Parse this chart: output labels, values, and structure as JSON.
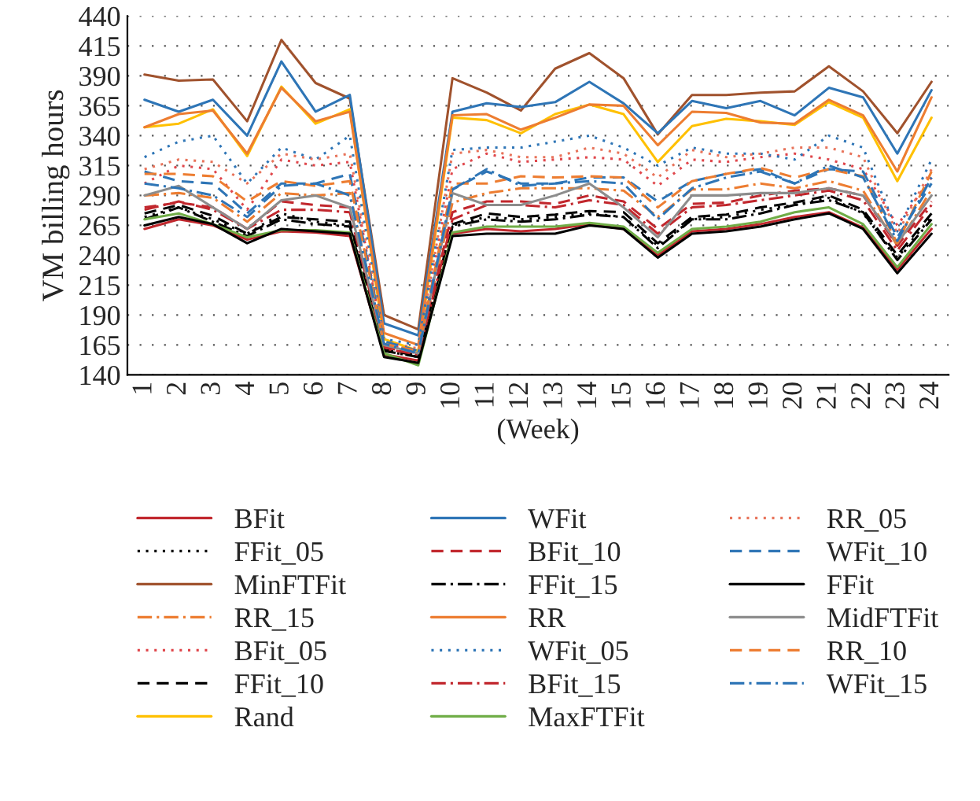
{
  "chart_data": {
    "type": "line",
    "ylabel": "VM billing hours",
    "xlabel": "(Week)",
    "categories": [
      "1",
      "2",
      "3",
      "4",
      "5",
      "6",
      "7",
      "8",
      "9",
      "10",
      "11",
      "12",
      "13",
      "14",
      "15",
      "16",
      "17",
      "18",
      "19",
      "20",
      "21",
      "22",
      "23",
      "24"
    ],
    "ylim": [
      140,
      440
    ],
    "yticks": [
      140,
      165,
      190,
      215,
      240,
      265,
      290,
      315,
      340,
      365,
      390,
      415,
      440
    ],
    "grid": "y",
    "legend": "bottom",
    "series": [
      {
        "name": "BFit",
        "color": "#c1272d",
        "line_style": "solid",
        "values": [
          262,
          270,
          265,
          253,
          260,
          259,
          256,
          157,
          152,
          258,
          262,
          260,
          262,
          266,
          262,
          240,
          260,
          262,
          266,
          272,
          276,
          263,
          228,
          262
        ]
      },
      {
        "name": "FFit_05",
        "color": "#000000",
        "line_style": "dotted",
        "values": [
          272,
          280,
          270,
          258,
          275,
          268,
          265,
          160,
          155,
          265,
          272,
          270,
          272,
          275,
          272,
          248,
          270,
          272,
          278,
          282,
          288,
          275,
          238,
          272
        ]
      },
      {
        "name": "MinFTFit",
        "color": "#a0522d",
        "line_style": "solid",
        "values": [
          391,
          386,
          387,
          352,
          420,
          384,
          371,
          190,
          178,
          388,
          376,
          361,
          396,
          409,
          388,
          341,
          374,
          374,
          376,
          377,
          398,
          377,
          342,
          385
        ]
      },
      {
        "name": "RR_15",
        "color": "#ed7d31",
        "line_style": "dashdot",
        "values": [
          290,
          292,
          288,
          268,
          292,
          290,
          292,
          164,
          158,
          284,
          292,
          296,
          296,
          296,
          294,
          272,
          295,
          295,
          300,
          296,
          302,
          294,
          248,
          295
        ]
      },
      {
        "name": "BFit_05",
        "color": "#e0474c",
        "line_style": "dotted",
        "values": [
          300,
          315,
          312,
          278,
          320,
          315,
          318,
          165,
          160,
          312,
          325,
          318,
          320,
          322,
          320,
          298,
          320,
          318,
          322,
          325,
          320,
          312,
          265,
          305
        ]
      },
      {
        "name": "FFit_10",
        "color": "#000000",
        "line_style": "dashed",
        "values": [
          275,
          282,
          273,
          258,
          272,
          270,
          268,
          161,
          156,
          266,
          275,
          272,
          274,
          277,
          276,
          250,
          272,
          274,
          280,
          284,
          290,
          278,
          240,
          275
        ]
      },
      {
        "name": "Rand",
        "color": "#ffc000",
        "line_style": "solid",
        "values": [
          347,
          350,
          362,
          323,
          381,
          350,
          362,
          170,
          160,
          355,
          353,
          342,
          358,
          366,
          358,
          318,
          348,
          354,
          352,
          349,
          368,
          355,
          302,
          355
        ]
      },
      {
        "name": "WFit",
        "color": "#2e75b6",
        "line_style": "solid",
        "values": [
          370,
          360,
          370,
          340,
          402,
          360,
          374,
          183,
          173,
          360,
          367,
          364,
          368,
          385,
          367,
          342,
          369,
          363,
          369,
          357,
          380,
          372,
          325,
          378
        ]
      },
      {
        "name": "BFit_10",
        "color": "#c1272d",
        "line_style": "dashed",
        "values": [
          280,
          284,
          280,
          262,
          285,
          282,
          280,
          163,
          158,
          276,
          285,
          285,
          283,
          290,
          285,
          262,
          283,
          284,
          290,
          294,
          296,
          290,
          248,
          285
        ]
      },
      {
        "name": "FFit_15",
        "color": "#000000",
        "line_style": "dashdot",
        "values": [
          270,
          280,
          268,
          256,
          270,
          266,
          264,
          160,
          155,
          264,
          270,
          268,
          270,
          274,
          272,
          246,
          270,
          270,
          275,
          282,
          286,
          276,
          236,
          270
        ]
      },
      {
        "name": "RR",
        "color": "#ed7d31",
        "line_style": "solid",
        "values": [
          347,
          358,
          361,
          325,
          380,
          352,
          360,
          175,
          165,
          357,
          358,
          345,
          355,
          366,
          365,
          332,
          360,
          359,
          351,
          350,
          370,
          357,
          310,
          372
        ]
      },
      {
        "name": "WFit_05",
        "color": "#2e75b6",
        "line_style": "dotted",
        "values": [
          322,
          335,
          340,
          300,
          330,
          320,
          340,
          170,
          165,
          328,
          330,
          330,
          335,
          340,
          330,
          315,
          330,
          325,
          325,
          320,
          340,
          330,
          260,
          320
        ]
      },
      {
        "name": "BFit_15",
        "color": "#c1272d",
        "line_style": "dashdot",
        "values": [
          278,
          285,
          278,
          262,
          278,
          278,
          276,
          162,
          157,
          270,
          282,
          282,
          280,
          286,
          282,
          258,
          280,
          282,
          286,
          290,
          294,
          286,
          244,
          282
        ]
      },
      {
        "name": "MaxFTFit",
        "color": "#70ad47",
        "line_style": "solid",
        "values": [
          270,
          275,
          266,
          255,
          261,
          261,
          259,
          158,
          148,
          259,
          264,
          264,
          264,
          267,
          264,
          242,
          262,
          264,
          268,
          276,
          280,
          266,
          230,
          266
        ]
      },
      {
        "name": "RR_05",
        "color": "#e8735a",
        "line_style": "dotted",
        "values": [
          312,
          320,
          318,
          300,
          325,
          320,
          325,
          168,
          162,
          325,
          328,
          322,
          322,
          330,
          325,
          305,
          328,
          322,
          325,
          330,
          330,
          322,
          258,
          312
        ]
      },
      {
        "name": "WFit_10",
        "color": "#2e75b6",
        "line_style": "dashed",
        "values": [
          310,
          302,
          300,
          275,
          300,
          300,
          308,
          168,
          160,
          295,
          310,
          300,
          300,
          305,
          305,
          285,
          302,
          308,
          312,
          300,
          312,
          310,
          255,
          300
        ]
      },
      {
        "name": "FFit",
        "color": "#000000",
        "line_style": "solid",
        "values": [
          265,
          272,
          266,
          250,
          262,
          260,
          258,
          155,
          150,
          256,
          258,
          258,
          258,
          265,
          262,
          238,
          258,
          260,
          264,
          270,
          275,
          262,
          225,
          258
        ]
      },
      {
        "name": "MidFTFit",
        "color": "#8c8c8c",
        "line_style": "solid",
        "values": [
          290,
          298,
          280,
          262,
          286,
          290,
          280,
          165,
          158,
          292,
          282,
          282,
          290,
          300,
          280,
          255,
          290,
          290,
          292,
          292,
          296,
          290,
          250,
          290
        ]
      },
      {
        "name": "RR_10",
        "color": "#ed7d31",
        "line_style": "dashed",
        "values": [
          308,
          308,
          306,
          285,
          302,
          298,
          302,
          166,
          160,
          300,
          300,
          306,
          305,
          306,
          305,
          280,
          302,
          308,
          313,
          305,
          312,
          306,
          250,
          310
        ]
      },
      {
        "name": "WFit_15",
        "color": "#2e75b6",
        "line_style": "dashdot",
        "values": [
          300,
          296,
          290,
          272,
          298,
          300,
          290,
          166,
          158,
          295,
          312,
          298,
          300,
          302,
          300,
          270,
          296,
          305,
          310,
          300,
          315,
          305,
          252,
          305
        ]
      }
    ]
  }
}
